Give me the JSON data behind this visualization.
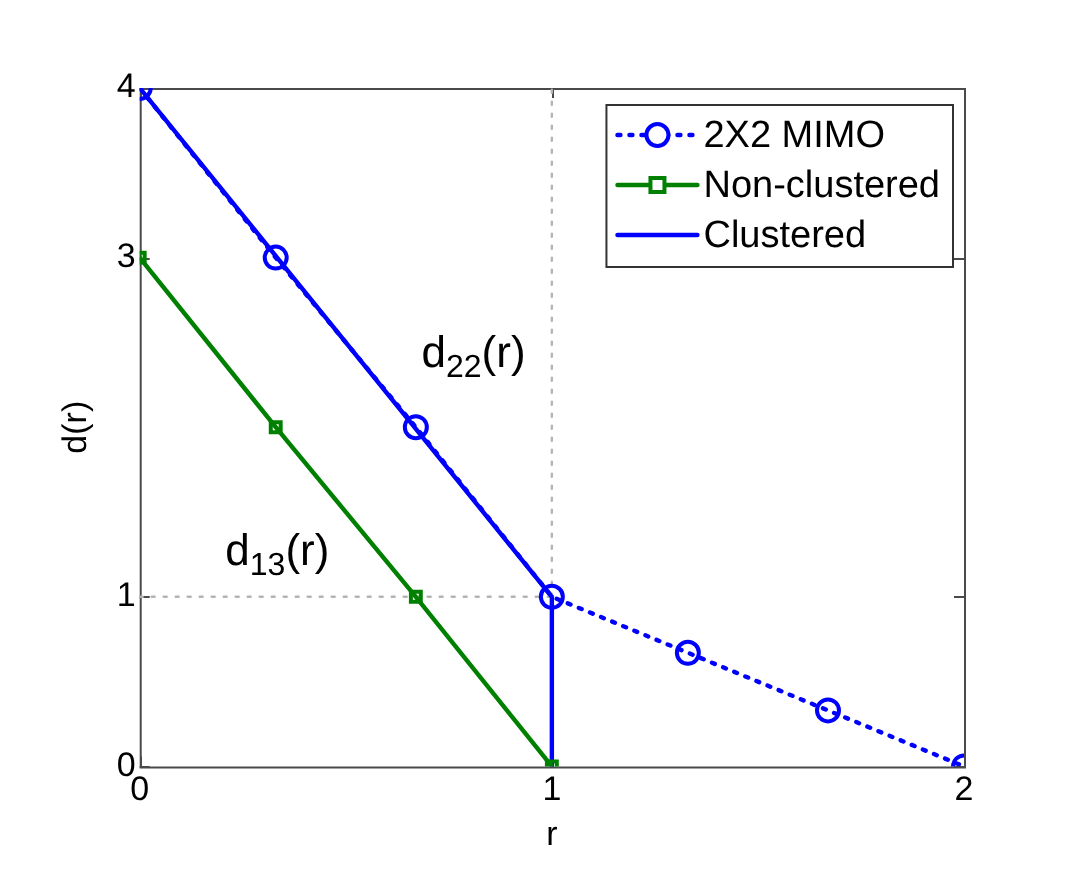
{
  "chart_data": {
    "type": "line",
    "xlabel": "r",
    "ylabel": "d(r)",
    "xlim": [
      0,
      2
    ],
    "ylim": [
      0,
      4
    ],
    "xticks": [
      0,
      1,
      2
    ],
    "yticks": [
      0,
      1,
      3,
      4
    ],
    "grid": false,
    "legend": "top right",
    "series": [
      {
        "name": "2X2 MIMO",
        "color": "#0000ff",
        "x": [
          0,
          0.33,
          0.67,
          1,
          1.33,
          1.67,
          2
        ],
        "values": [
          4,
          3,
          2,
          1,
          0.67,
          0.33,
          0
        ],
        "marker": "circle",
        "line_style": "dotted"
      },
      {
        "name": "Non-clustered",
        "color": "#008000",
        "x": [
          0,
          0.33,
          0.67,
          1
        ],
        "values": [
          3,
          2,
          1,
          0
        ],
        "marker": "square",
        "line_style": "solid"
      },
      {
        "name": "Clustered",
        "color": "#0000ff",
        "x": [
          0,
          1,
          1
        ],
        "values": [
          4,
          1,
          0
        ],
        "marker": "none",
        "line_style": "solid"
      },
      {
        "color": "#b4b4b4",
        "x": [
          0,
          1
        ],
        "values": [
          1,
          1
        ],
        "marker": "none",
        "line_style": "dotted"
      },
      {
        "color": "#b4b4b4",
        "x": [
          1,
          1
        ],
        "values": [
          1,
          4
        ],
        "marker": "none",
        "line_style": "dotted"
      }
    ],
    "annotations": [
      "d$_{22}$(r)",
      "d$_{13}$(r)"
    ]
  }
}
